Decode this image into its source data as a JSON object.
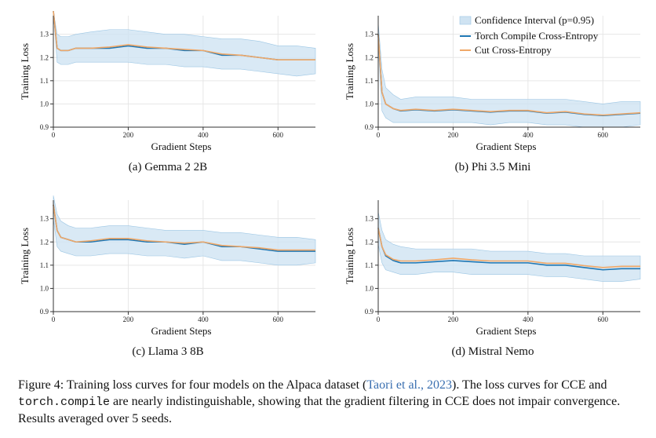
{
  "colors": {
    "ci_fill": "#cfe3f2",
    "ci_edge": "#9cc6e4",
    "torch": "#1f77b4",
    "cce": "#f0a868",
    "axis": "#333333"
  },
  "legend": {
    "ci": "Confidence Interval (p=0.95)",
    "torch": "Torch Compile Cross-Entropy",
    "cce": "Cut Cross-Entropy"
  },
  "chart_data": [
    {
      "type": "line",
      "xlabel": "Gradient Steps",
      "ylabel": "Training Loss",
      "xlim": [
        0,
        700
      ],
      "ylim": [
        0.9,
        1.38
      ],
      "xticks": [
        0,
        200,
        400,
        600
      ],
      "yticks": [
        0.9,
        1.0,
        1.1,
        1.2,
        1.3
      ],
      "grid": true,
      "caption": "(a) Gemma 2 2B",
      "x": [
        0,
        10,
        20,
        40,
        60,
        100,
        150,
        200,
        250,
        300,
        350,
        400,
        450,
        500,
        550,
        600,
        650,
        700
      ],
      "series": [
        {
          "name": "Torch Compile Cross-Entropy",
          "values": [
            1.4,
            1.24,
            1.23,
            1.23,
            1.24,
            1.24,
            1.24,
            1.25,
            1.24,
            1.24,
            1.23,
            1.23,
            1.21,
            1.21,
            1.2,
            1.19,
            1.19,
            1.19
          ]
        },
        {
          "name": "Cut Cross-Entropy",
          "values": [
            1.4,
            1.24,
            1.23,
            1.23,
            1.24,
            1.24,
            1.245,
            1.255,
            1.245,
            1.24,
            1.235,
            1.23,
            1.215,
            1.21,
            1.2,
            1.19,
            1.19,
            1.19
          ]
        }
      ],
      "ci_upper": [
        1.4,
        1.3,
        1.29,
        1.29,
        1.3,
        1.31,
        1.32,
        1.32,
        1.31,
        1.3,
        1.3,
        1.29,
        1.28,
        1.28,
        1.27,
        1.25,
        1.25,
        1.24
      ],
      "ci_lower": [
        1.4,
        1.18,
        1.17,
        1.17,
        1.18,
        1.18,
        1.18,
        1.18,
        1.17,
        1.17,
        1.16,
        1.16,
        1.15,
        1.15,
        1.14,
        1.13,
        1.12,
        1.13
      ]
    },
    {
      "type": "line",
      "xlabel": "Gradient Steps",
      "ylabel": "Training Loss",
      "xlim": [
        0,
        700
      ],
      "ylim": [
        0.9,
        1.38
      ],
      "xticks": [
        0,
        200,
        400,
        600
      ],
      "yticks": [
        0.9,
        1.0,
        1.1,
        1.2,
        1.3
      ],
      "grid": true,
      "caption": "(b) Phi 3.5 Mini",
      "legend_position": "top-right",
      "x": [
        0,
        10,
        20,
        40,
        60,
        100,
        150,
        200,
        250,
        300,
        350,
        400,
        450,
        500,
        550,
        600,
        650,
        700
      ],
      "series": [
        {
          "name": "Torch Compile Cross-Entropy",
          "values": [
            1.3,
            1.05,
            1.0,
            0.98,
            0.97,
            0.975,
            0.97,
            0.975,
            0.97,
            0.965,
            0.97,
            0.97,
            0.96,
            0.965,
            0.955,
            0.95,
            0.955,
            0.96
          ]
        },
        {
          "name": "Cut Cross-Entropy",
          "values": [
            1.3,
            1.05,
            1.0,
            0.98,
            0.972,
            0.977,
            0.972,
            0.977,
            0.972,
            0.967,
            0.972,
            0.972,
            0.962,
            0.967,
            0.957,
            0.952,
            0.957,
            0.962
          ]
        }
      ],
      "ci_upper": [
        1.35,
        1.15,
        1.07,
        1.04,
        1.02,
        1.03,
        1.03,
        1.03,
        1.02,
        1.02,
        1.02,
        1.02,
        1.02,
        1.02,
        1.01,
        1.0,
        1.01,
        1.01
      ],
      "ci_lower": [
        1.25,
        0.97,
        0.94,
        0.92,
        0.92,
        0.92,
        0.92,
        0.92,
        0.92,
        0.91,
        0.92,
        0.92,
        0.91,
        0.91,
        0.9,
        0.9,
        0.9,
        0.91
      ]
    },
    {
      "type": "line",
      "xlabel": "Gradient Steps",
      "ylabel": "Training Loss",
      "xlim": [
        0,
        700
      ],
      "ylim": [
        0.9,
        1.38
      ],
      "xticks": [
        0,
        200,
        400,
        600
      ],
      "yticks": [
        0.9,
        1.0,
        1.1,
        1.2,
        1.3
      ],
      "grid": true,
      "caption": "(c) Llama 3 8B",
      "x": [
        0,
        10,
        20,
        40,
        60,
        100,
        150,
        200,
        250,
        300,
        350,
        400,
        450,
        500,
        550,
        600,
        650,
        700
      ],
      "series": [
        {
          "name": "Torch Compile Cross-Entropy",
          "values": [
            1.36,
            1.25,
            1.22,
            1.21,
            1.2,
            1.2,
            1.21,
            1.21,
            1.2,
            1.2,
            1.19,
            1.2,
            1.18,
            1.18,
            1.17,
            1.16,
            1.16,
            1.16
          ]
        },
        {
          "name": "Cut Cross-Entropy",
          "values": [
            1.36,
            1.25,
            1.22,
            1.21,
            1.2,
            1.205,
            1.215,
            1.215,
            1.205,
            1.2,
            1.195,
            1.2,
            1.185,
            1.18,
            1.175,
            1.165,
            1.165,
            1.165
          ]
        }
      ],
      "ci_upper": [
        1.4,
        1.32,
        1.29,
        1.27,
        1.26,
        1.26,
        1.27,
        1.27,
        1.26,
        1.25,
        1.25,
        1.25,
        1.24,
        1.24,
        1.23,
        1.22,
        1.22,
        1.21
      ],
      "ci_lower": [
        1.3,
        1.18,
        1.16,
        1.15,
        1.14,
        1.14,
        1.15,
        1.15,
        1.14,
        1.14,
        1.13,
        1.14,
        1.12,
        1.12,
        1.11,
        1.1,
        1.1,
        1.11
      ]
    },
    {
      "type": "line",
      "xlabel": "Gradient Steps",
      "ylabel": "Training Loss",
      "xlim": [
        0,
        700
      ],
      "ylim": [
        0.9,
        1.38
      ],
      "xticks": [
        0,
        200,
        400,
        600
      ],
      "yticks": [
        0.9,
        1.0,
        1.1,
        1.2,
        1.3
      ],
      "grid": true,
      "caption": "(d) Mistral Nemo",
      "x": [
        0,
        10,
        20,
        40,
        60,
        100,
        150,
        200,
        250,
        300,
        350,
        400,
        450,
        500,
        550,
        600,
        650,
        700
      ],
      "series": [
        {
          "name": "Torch Compile Cross-Entropy",
          "values": [
            1.26,
            1.18,
            1.14,
            1.12,
            1.11,
            1.11,
            1.115,
            1.12,
            1.115,
            1.11,
            1.11,
            1.11,
            1.1,
            1.1,
            1.09,
            1.08,
            1.085,
            1.085
          ]
        },
        {
          "name": "Cut Cross-Entropy",
          "values": [
            1.26,
            1.18,
            1.145,
            1.125,
            1.118,
            1.118,
            1.123,
            1.13,
            1.123,
            1.118,
            1.118,
            1.118,
            1.108,
            1.108,
            1.098,
            1.09,
            1.095,
            1.095
          ]
        }
      ],
      "ci_upper": [
        1.33,
        1.25,
        1.21,
        1.19,
        1.18,
        1.17,
        1.17,
        1.17,
        1.17,
        1.16,
        1.16,
        1.16,
        1.15,
        1.15,
        1.14,
        1.14,
        1.14,
        1.14
      ],
      "ci_lower": [
        1.19,
        1.11,
        1.08,
        1.07,
        1.06,
        1.06,
        1.07,
        1.07,
        1.06,
        1.06,
        1.06,
        1.06,
        1.05,
        1.05,
        1.04,
        1.03,
        1.03,
        1.04
      ]
    }
  ],
  "caption": {
    "p1": "Figure 4: Training loss curves for four models on the Alpaca dataset (",
    "cite": "Taori et al., 2023",
    "p2": "). The loss curves for CCE and ",
    "code": "torch.compile",
    "p3": " are nearly indistinguishable, showing that the gradient filtering in CCE does not impair convergence. Results averaged over 5 seeds."
  }
}
